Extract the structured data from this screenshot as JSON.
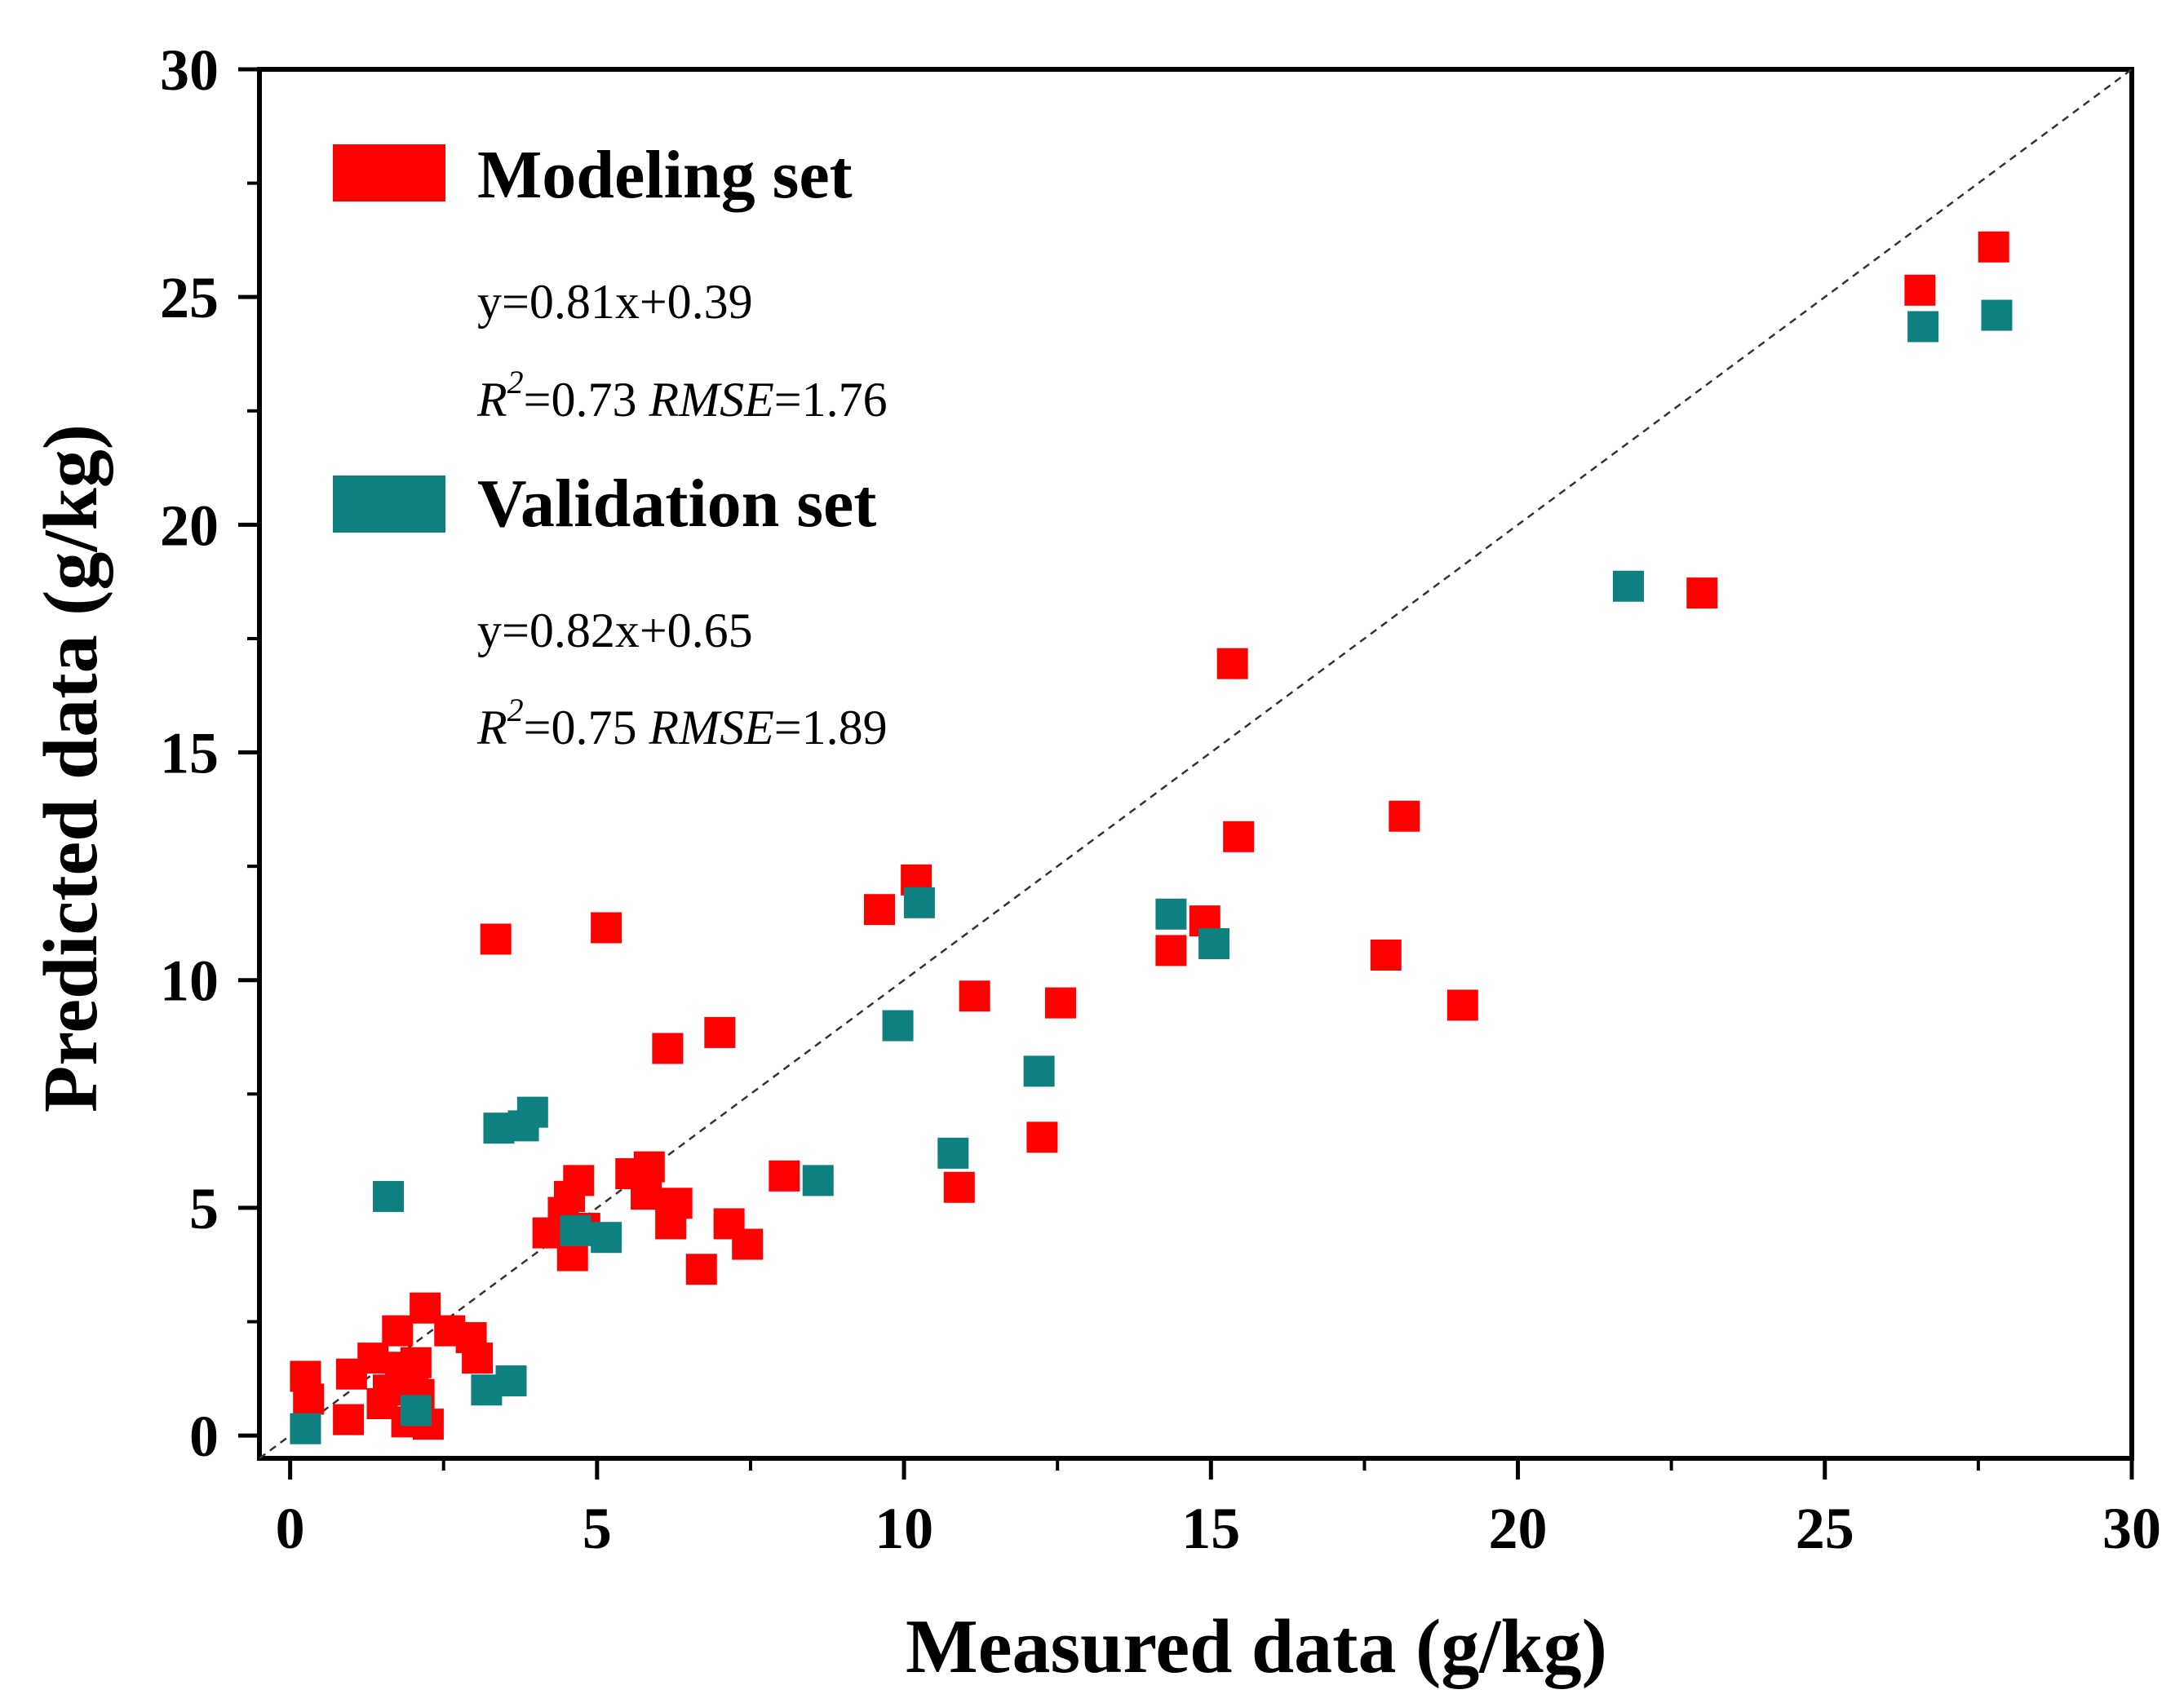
{
  "chart_data": {
    "type": "scatter",
    "xlabel": "Measured data (g/kg)",
    "ylabel": "Predicted data (g/kg)",
    "xlim": [
      -0.5,
      30
    ],
    "ylim": [
      -0.5,
      30
    ],
    "xticks": [
      0,
      5,
      10,
      15,
      20,
      25,
      30
    ],
    "yticks": [
      0,
      5,
      10,
      15,
      20,
      25,
      30
    ],
    "xtick_labels": [
      "0",
      "5",
      "10",
      "15",
      "20",
      "25",
      "30"
    ],
    "ytick_labels": [
      "0",
      "5",
      "10",
      "15",
      "20",
      "25",
      "30"
    ],
    "reference_line": "1:1 dashed",
    "legend_position": "top-left",
    "grid": false,
    "series": [
      {
        "name": "Modeling set",
        "color": "#ff0000",
        "marker": "square",
        "equation": "y=0.81x+0.39",
        "r2_label": "R",
        "r2_sup": "2",
        "r2_value": "=0.73 ",
        "rmse_label": "RMSE",
        "rmse_value": "=1.76",
        "points": [
          [
            0.25,
            1.3
          ],
          [
            0.3,
            0.8
          ],
          [
            0.95,
            0.35
          ],
          [
            1.0,
            1.35
          ],
          [
            1.35,
            1.7
          ],
          [
            1.5,
            0.7
          ],
          [
            1.6,
            1.0
          ],
          [
            1.75,
            2.3
          ],
          [
            1.8,
            1.5
          ],
          [
            1.9,
            0.3
          ],
          [
            2.0,
            1.1
          ],
          [
            2.05,
            1.6
          ],
          [
            2.1,
            0.9
          ],
          [
            2.2,
            2.8
          ],
          [
            2.25,
            0.25
          ],
          [
            2.6,
            2.3
          ],
          [
            2.95,
            2.15
          ],
          [
            3.05,
            1.7
          ],
          [
            3.35,
            10.9
          ],
          [
            4.2,
            4.45
          ],
          [
            4.45,
            4.9
          ],
          [
            4.55,
            5.25
          ],
          [
            4.6,
            3.95
          ],
          [
            4.7,
            5.6
          ],
          [
            4.8,
            4.55
          ],
          [
            5.15,
            11.15
          ],
          [
            5.55,
            5.75
          ],
          [
            5.8,
            5.3
          ],
          [
            5.85,
            5.9
          ],
          [
            6.15,
            8.5
          ],
          [
            6.2,
            4.65
          ],
          [
            6.3,
            5.1
          ],
          [
            6.7,
            3.65
          ],
          [
            7.0,
            8.85
          ],
          [
            7.15,
            4.65
          ],
          [
            7.45,
            4.2
          ],
          [
            8.05,
            5.7
          ],
          [
            9.6,
            11.55
          ],
          [
            10.2,
            12.2
          ],
          [
            10.9,
            5.45
          ],
          [
            11.15,
            9.65
          ],
          [
            12.25,
            6.55
          ],
          [
            12.55,
            9.5
          ],
          [
            14.35,
            10.65
          ],
          [
            14.9,
            11.3
          ],
          [
            15.35,
            16.95
          ],
          [
            15.45,
            13.15
          ],
          [
            17.85,
            10.55
          ],
          [
            18.15,
            13.6
          ],
          [
            19.1,
            9.45
          ],
          [
            23.0,
            18.5
          ],
          [
            26.55,
            25.15
          ],
          [
            27.75,
            26.1
          ]
        ]
      },
      {
        "name": "Validation set",
        "color": "#0f8080",
        "marker": "square",
        "equation": "y=0.82x+0.65",
        "r2_label": "R",
        "r2_sup": "2",
        "r2_value": "=0.75 ",
        "rmse_label": "RMSE",
        "rmse_value": "=1.89",
        "points": [
          [
            0.25,
            0.15
          ],
          [
            1.6,
            5.25
          ],
          [
            2.05,
            0.55
          ],
          [
            3.2,
            1.0
          ],
          [
            3.4,
            6.75
          ],
          [
            3.6,
            1.2
          ],
          [
            3.8,
            6.8
          ],
          [
            3.95,
            7.1
          ],
          [
            4.65,
            4.5
          ],
          [
            5.15,
            4.35
          ],
          [
            8.6,
            5.6
          ],
          [
            9.9,
            9.0
          ],
          [
            10.25,
            11.7
          ],
          [
            10.8,
            6.2
          ],
          [
            12.2,
            8.0
          ],
          [
            14.35,
            11.45
          ],
          [
            15.05,
            10.8
          ],
          [
            21.8,
            18.65
          ],
          [
            26.6,
            24.35
          ],
          [
            27.8,
            24.6
          ]
        ]
      }
    ]
  }
}
